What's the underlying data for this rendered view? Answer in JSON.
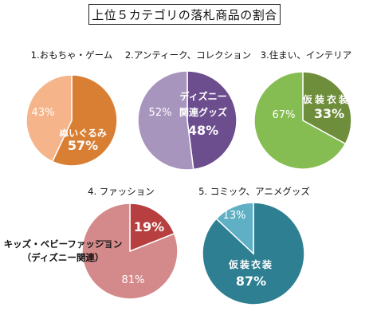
{
  "title": "上位５カテゴリの落札商品の割合",
  "chart_data": [
    {
      "type": "pie",
      "title": "1.おもちゃ・ゲーム",
      "slices": [
        {
          "value": 57,
          "label": "ぬいぐるみ",
          "pct_label": "57%",
          "color": "#D97F34",
          "text_color": "#ffffff"
        },
        {
          "value": 43,
          "label": "",
          "pct_label": "43%",
          "color": "#F6B48A",
          "text_color": "#ffffff"
        }
      ]
    },
    {
      "type": "pie",
      "title": "2.アンティーク、コレクション",
      "slices": [
        {
          "value": 48,
          "label": "ディズニー関連グッズ",
          "pct_label": "48%",
          "color": "#6C4E8E",
          "text_color": "#ffffff"
        },
        {
          "value": 52,
          "label": "",
          "pct_label": "52%",
          "color": "#A895BE",
          "text_color": "#ffffff"
        }
      ]
    },
    {
      "type": "pie",
      "title": "3.住まい、インテリア",
      "slices": [
        {
          "value": 33,
          "label": "仮装衣装",
          "pct_label": "33%",
          "color": "#6F8E3C",
          "text_color": "#ffffff"
        },
        {
          "value": 67,
          "label": "",
          "pct_label": "67%",
          "color": "#86BD52",
          "text_color": "#ffffff"
        }
      ]
    },
    {
      "type": "pie",
      "title": "4.  ファッション",
      "slices": [
        {
          "value": 19,
          "label": "キッズ・ベビーファッション（ディズニー関連）",
          "pct_label": "19%",
          "color": "#B73F3F",
          "text_color": "#ffffff"
        },
        {
          "value": 81,
          "label": "",
          "pct_label": "81%",
          "color": "#D48A8A",
          "text_color": "#ffffff"
        }
      ]
    },
    {
      "type": "pie",
      "title": "5. コミック、アニメグッズ",
      "slices": [
        {
          "value": 87,
          "label": "仮装衣装",
          "pct_label": "87%",
          "color": "#2E7F92",
          "text_color": "#ffffff"
        },
        {
          "value": 13,
          "label": "",
          "pct_label": "13%",
          "color": "#5FB0C4",
          "text_color": "#ffffff"
        }
      ]
    }
  ]
}
